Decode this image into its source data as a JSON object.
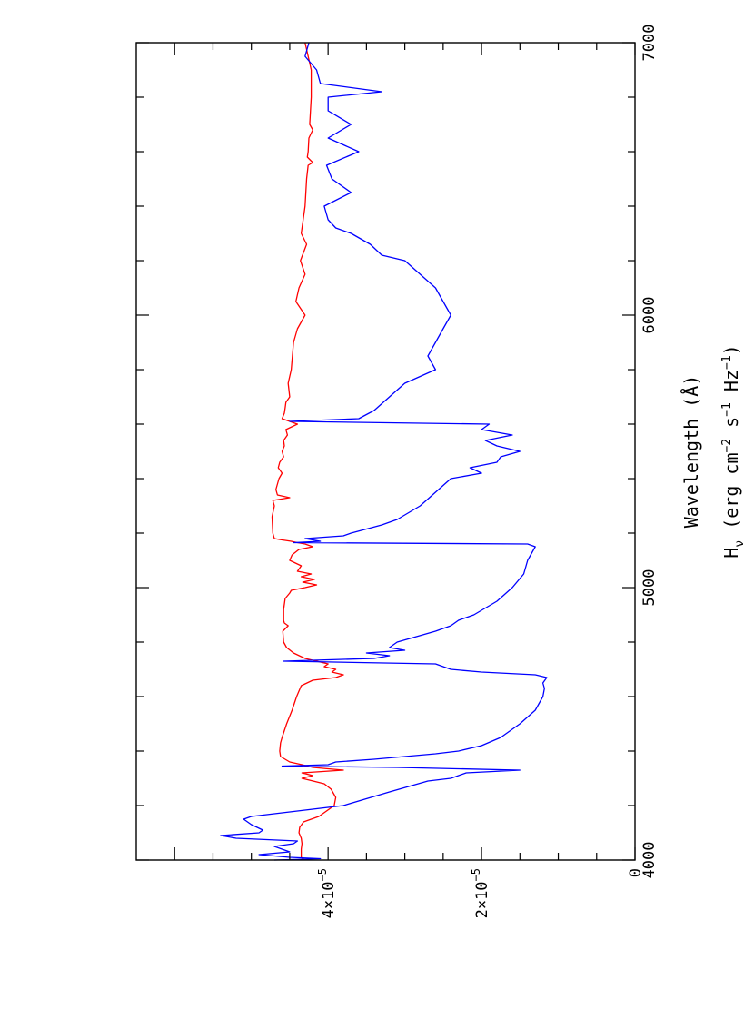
{
  "chart_data": {
    "type": "line",
    "orientation": "rotated 90 degrees counter-clockwise",
    "xlabel": "Wavelength (Å)",
    "ylabel": {
      "main": "H",
      "sub": "ν",
      "units_open": " (erg cm",
      "sup1": "−2",
      "mid1": " s",
      "sup2": "−1",
      "mid2": " Hz",
      "sup3": "−1",
      "units_close": ")"
    },
    "xlim": [
      4000,
      7000
    ],
    "ylim": [
      0,
      6.5e-05
    ],
    "xticks": [
      {
        "value": 4000,
        "label": "4000"
      },
      {
        "value": 5000,
        "label": "5000"
      },
      {
        "value": 6000,
        "label": "6000"
      },
      {
        "value": 7000,
        "label": "7000"
      }
    ],
    "yticks": [
      {
        "value": 0,
        "label": "0",
        "base": "",
        "exp": ""
      },
      {
        "value": 2e-05,
        "label": "",
        "base": "2×10",
        "exp": "−5"
      },
      {
        "value": 4e-05,
        "label": "",
        "base": "4×10",
        "exp": "−5"
      }
    ],
    "series": [
      {
        "color": "#ff0000",
        "x": [
          4000,
          4010,
          4040,
          4060,
          4080,
          4100,
          4120,
          4140,
          4160,
          4200,
          4230,
          4260,
          4280,
          4300,
          4310,
          4320,
          4330,
          4340,
          4350,
          4360,
          4380,
          4400,
          4430,
          4450,
          4500,
          4550,
          4600,
          4640,
          4660,
          4670,
          4680,
          4690,
          4700,
          4710,
          4720,
          4730,
          4740,
          4760,
          4780,
          4800,
          4840,
          4860,
          4870,
          4880,
          4920,
          4960,
          4980,
          4990,
          5000,
          5010,
          5020,
          5030,
          5040,
          5050,
          5060,
          5080,
          5100,
          5120,
          5140,
          5150,
          5160,
          5165,
          5170,
          5175,
          5180,
          5200,
          5260,
          5300,
          5320,
          5330,
          5340,
          5360,
          5380,
          5400,
          5420,
          5440,
          5460,
          5480,
          5500,
          5520,
          5540,
          5560,
          5580,
          5600,
          5620,
          5640,
          5660,
          5680,
          5700,
          5750,
          5800,
          5900,
          5950,
          6000,
          6050,
          6100,
          6150,
          6200,
          6260,
          6300,
          6400,
          6500,
          6550,
          6560,
          6580,
          6600,
          6650,
          6680,
          6700,
          6800,
          6900,
          7000
        ],
        "y": [
          4.3e-05,
          4.35e-05,
          4.35e-05,
          4.34e-05,
          4.35e-05,
          4.38e-05,
          4.37e-05,
          4.32e-05,
          4.12e-05,
          3.92e-05,
          3.9e-05,
          3.96e-05,
          4.05e-05,
          4.34e-05,
          4.2e-05,
          4.34e-05,
          3.8e-05,
          4.2e-05,
          4.34e-05,
          4.5e-05,
          4.62e-05,
          4.63e-05,
          4.62e-05,
          4.6e-05,
          4.54e-05,
          4.47e-05,
          4.41e-05,
          4.35e-05,
          4.2e-05,
          3.9e-05,
          3.8e-05,
          3.95e-05,
          3.9e-05,
          4.05e-05,
          4e-05,
          4.15e-05,
          4.3e-05,
          4.45e-05,
          4.54e-05,
          4.58e-05,
          4.59e-05,
          4.52e-05,
          4.57e-05,
          4.58e-05,
          4.58e-05,
          4.56e-05,
          4.5e-05,
          4.48e-05,
          4.3e-05,
          4.15e-05,
          4.33e-05,
          4.18e-05,
          4.35e-05,
          4.22e-05,
          4.4e-05,
          4.35e-05,
          4.5e-05,
          4.47e-05,
          4.38e-05,
          4.2e-05,
          4.3e-05,
          4.4e-05,
          4.48e-05,
          4.6e-05,
          4.7e-05,
          4.72e-05,
          4.73e-05,
          4.7e-05,
          4.72e-05,
          4.5e-05,
          4.66e-05,
          4.68e-05,
          4.66e-05,
          4.64e-05,
          4.6e-05,
          4.65e-05,
          4.63e-05,
          4.58e-05,
          4.6e-05,
          4.57e-05,
          4.58e-05,
          4.53e-05,
          4.55e-05,
          4.4e-05,
          4.6e-05,
          4.57e-05,
          4.56e-05,
          4.55e-05,
          4.5e-05,
          4.52e-05,
          4.48e-05,
          4.45e-05,
          4.4e-05,
          4.3e-05,
          4.42e-05,
          4.38e-05,
          4.3e-05,
          4.36e-05,
          4.28e-05,
          4.35e-05,
          4.3e-05,
          4.28e-05,
          4.26e-05,
          4.2e-05,
          4.27e-05,
          4.26e-05,
          4.25e-05,
          4.2e-05,
          4.24e-05,
          4.22e-05,
          4.22e-05,
          4.3e-05
        ]
      },
      {
        "color": "#0000ff",
        "x": [
          4000,
          4005,
          4010,
          4020,
          4030,
          4050,
          4060,
          4070,
          4080,
          4090,
          4100,
          4110,
          4130,
          4150,
          4160,
          4180,
          4200,
          4250,
          4290,
          4300,
          4320,
          4330,
          4340,
          4345,
          4350,
          4360,
          4370,
          4380,
          4390,
          4400,
          4420,
          4450,
          4500,
          4550,
          4600,
          4630,
          4650,
          4670,
          4680,
          4690,
          4700,
          4720,
          4730,
          4740,
          4750,
          4760,
          4770,
          4780,
          4800,
          4840,
          4860,
          4880,
          4900,
          4950,
          5000,
          5050,
          5100,
          5150,
          5160,
          5165,
          5170,
          5180,
          5190,
          5200,
          5230,
          5250,
          5300,
          5350,
          5400,
          5420,
          5440,
          5460,
          5480,
          5500,
          5520,
          5540,
          5560,
          5580,
          5600,
          5610,
          5620,
          5650,
          5700,
          5750,
          5800,
          5850,
          5900,
          5950,
          6000,
          6050,
          6100,
          6150,
          6200,
          6220,
          6260,
          6300,
          6320,
          6350,
          6400,
          6450,
          6500,
          6550,
          6600,
          6650,
          6700,
          6750,
          6800,
          6820,
          6850,
          6900,
          6950,
          7000
        ],
        "y": [
          4.7e-05,
          4.1e-05,
          4.5e-05,
          4.9e-05,
          4.5e-05,
          4.7e-05,
          4.45e-05,
          4.4e-05,
          5.2e-05,
          5.4e-05,
          4.9e-05,
          4.85e-05,
          5e-05,
          5.1e-05,
          5e-05,
          4.4e-05,
          3.8e-05,
          3.2e-05,
          2.7e-05,
          2.4e-05,
          2.2e-05,
          1.5e-05,
          3.1e-05,
          4.6e-05,
          4e-05,
          3.9e-05,
          3.4e-05,
          3e-05,
          2.6e-05,
          2.3e-05,
          2e-05,
          1.75e-05,
          1.5e-05,
          1.3e-05,
          1.2e-05,
          1.18e-05,
          1.2e-05,
          1.15e-05,
          1.3e-05,
          2e-05,
          2.4e-05,
          2.6e-05,
          4.58e-05,
          3.4e-05,
          3.2e-05,
          3.5e-05,
          3e-05,
          3.2e-05,
          3.1e-05,
          2.6e-05,
          2.4e-05,
          2.3e-05,
          2.1e-05,
          1.8e-05,
          1.6e-05,
          1.45e-05,
          1.4e-05,
          1.3e-05,
          1.4e-05,
          4.45e-05,
          4.1e-05,
          4.3e-05,
          3.8e-05,
          3.7e-05,
          3.3e-05,
          3.1e-05,
          2.8e-05,
          2.6e-05,
          2.4e-05,
          2e-05,
          2.15e-05,
          1.8e-05,
          1.75e-05,
          1.5e-05,
          1.8e-05,
          1.95e-05,
          1.6e-05,
          2e-05,
          1.9e-05,
          4.5e-05,
          3.6e-05,
          3.4e-05,
          3.2e-05,
          3e-05,
          2.6e-05,
          2.7e-05,
          2.6e-05,
          2.5e-05,
          2.4e-05,
          2.5e-05,
          2.6e-05,
          2.8e-05,
          3e-05,
          3.3e-05,
          3.45e-05,
          3.7e-05,
          3.9e-05,
          4e-05,
          4.05e-05,
          3.7e-05,
          3.95e-05,
          4.02e-05,
          3.6e-05,
          4e-05,
          3.7e-05,
          4e-05,
          4e-05,
          3.3e-05,
          4.1e-05,
          4.15e-05,
          4.3e-05,
          4.25e-05
        ]
      }
    ]
  }
}
